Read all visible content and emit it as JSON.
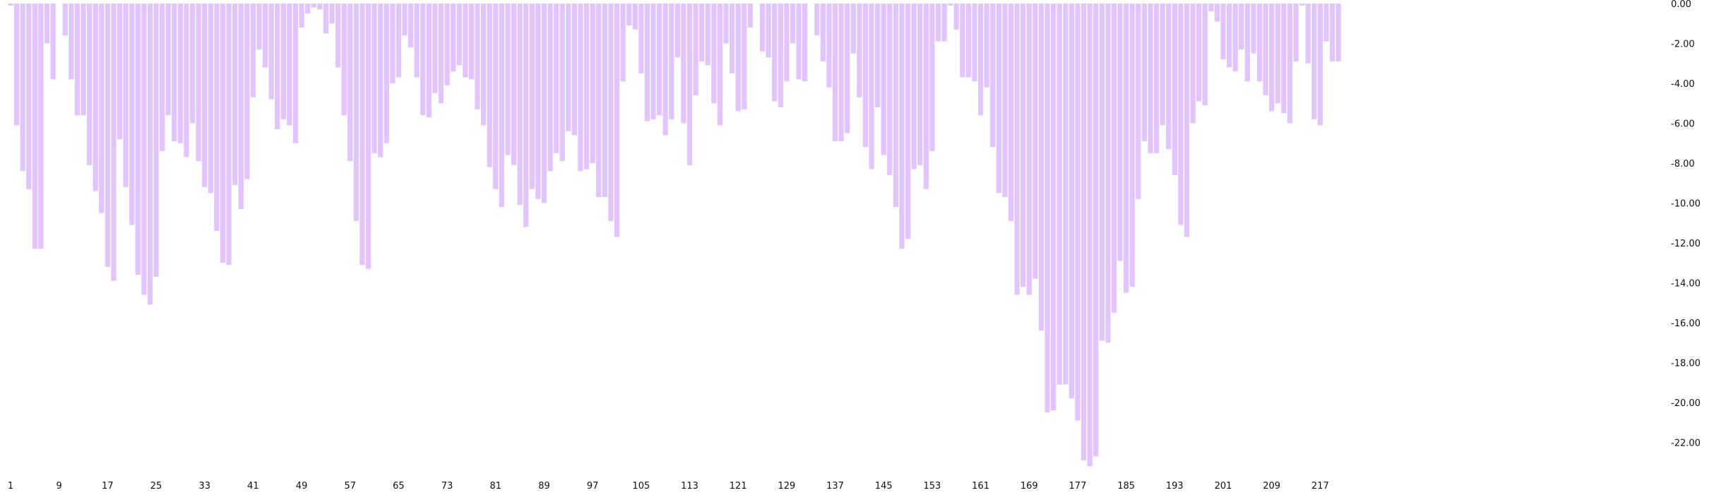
{
  "chart_data": {
    "type": "bar",
    "title": "",
    "xlabel": "",
    "ylabel": "",
    "ylim": [
      -23.4,
      0
    ],
    "grid": false,
    "legend": "none",
    "bar_color": "#e2c4ff",
    "y_ticks": [
      0,
      -2,
      -4,
      -6,
      -8,
      -10,
      -12,
      -14,
      -16,
      -18,
      -20,
      -22
    ],
    "y_tick_labels": [
      "0.00",
      "-2.00",
      "-4.00",
      "-6.00",
      "-8.00",
      "-10.00",
      "-12.00",
      "-14.00",
      "-16.00",
      "-18.00",
      "-20.00",
      "-22.00"
    ],
    "x_tick_categories": [
      1,
      9,
      17,
      25,
      33,
      41,
      49,
      57,
      65,
      73,
      81,
      89,
      97,
      105,
      113,
      121,
      129,
      137,
      145,
      153,
      161,
      169,
      177,
      185,
      193,
      201,
      209,
      217
    ],
    "x_tick_labels": [
      "1",
      "9",
      "17",
      "25",
      "33",
      "41",
      "49",
      "57",
      "65",
      "73",
      "81",
      "89",
      "97",
      "105",
      "113",
      "121",
      "129",
      "137",
      "145",
      "153",
      "161",
      "169",
      "177",
      "185",
      "193",
      "201",
      "209",
      "217"
    ],
    "categories_start": 1,
    "values": [
      -0.1,
      -6.1,
      -8.4,
      -9.3,
      -12.3,
      -12.3,
      -2,
      -3.8,
      0,
      -1.6,
      -3.8,
      -5.6,
      -5.6,
      -8.1,
      -9.4,
      -10.5,
      -13.2,
      -13.9,
      -6.8,
      -9.2,
      -11.1,
      -13.6,
      -14.6,
      -15.1,
      -13.7,
      -7.4,
      -5.6,
      -6.9,
      -7,
      -7.7,
      -6,
      -7.9,
      -9.2,
      -9.5,
      -11.4,
      -13,
      -13.1,
      -9.1,
      -10.3,
      -8.8,
      -4.7,
      -2.3,
      -3.2,
      -4.8,
      -6.3,
      -5.8,
      -6.1,
      -7,
      -1.2,
      -0.5,
      -0.2,
      -0.3,
      -1.5,
      -1,
      -3.2,
      -5.6,
      -7.9,
      -10.9,
      -13.1,
      -13.3,
      -7.5,
      -7.7,
      -7,
      -4,
      -3.7,
      -1.6,
      -2.2,
      -3.7,
      -5.6,
      -5.7,
      -4.5,
      -5,
      -4.1,
      -3.4,
      -3.1,
      -3.7,
      -3.8,
      -5.3,
      -6.1,
      -8.2,
      -9.3,
      -10.2,
      -7.6,
      -8.1,
      -10.1,
      -11.2,
      -9.3,
      -9.8,
      -10,
      -8.4,
      -7.5,
      -7.9,
      -6.4,
      -6.6,
      -8.4,
      -8.3,
      -8,
      -9.7,
      -9.7,
      -10.9,
      -11.7,
      -3.9,
      -1.1,
      -1.3,
      -3.5,
      -5.9,
      -5.8,
      -5.6,
      -6.6,
      -5.8,
      -2.7,
      -6,
      -8.1,
      -4.6,
      -2.9,
      -3.1,
      -5,
      -6.1,
      -2,
      -3.5,
      -5.4,
      -5.3,
      -1.2,
      0,
      -2.4,
      -2.7,
      -4.9,
      -5.2,
      -3.9,
      -2,
      -3.8,
      -3.9,
      0,
      -1.6,
      -2.9,
      -4.2,
      -6.9,
      -6.9,
      -6.5,
      -2.5,
      -4.7,
      -7.2,
      -8.3,
      -5.2,
      -7.6,
      -8.6,
      -10.2,
      -12.3,
      -11.8,
      -8.3,
      -8.1,
      -9.3,
      -7.4,
      -1.9,
      -1.9,
      -0.1,
      -1.3,
      -3.7,
      -3.7,
      -3.9,
      -5.6,
      -4.2,
      -7.2,
      -9.5,
      -9.7,
      -10.9,
      -14.6,
      -14.2,
      -14.6,
      -13.8,
      -16.4,
      -20.5,
      -20.4,
      -19.1,
      -19.1,
      -19.8,
      -20.9,
      -22.9,
      -23.2,
      -22.7,
      -16.9,
      -17,
      -15.5,
      -12.9,
      -14.5,
      -14.2,
      -9.8,
      -6.9,
      -7.5,
      -7.5,
      -6.1,
      -7.3,
      -8.6,
      -11.1,
      -11.7,
      -6,
      -4.9,
      -5.1,
      -0.4,
      -0.9,
      -2.8,
      -3.2,
      -3.4,
      -2.3,
      -3.9,
      -2.5,
      -3.9,
      -4.6,
      -5.4,
      -5,
      -5.5,
      -6,
      -2.9,
      -0.1,
      -3,
      -5.8,
      -6.1,
      -1.9,
      -2.9,
      -2.9
    ]
  }
}
